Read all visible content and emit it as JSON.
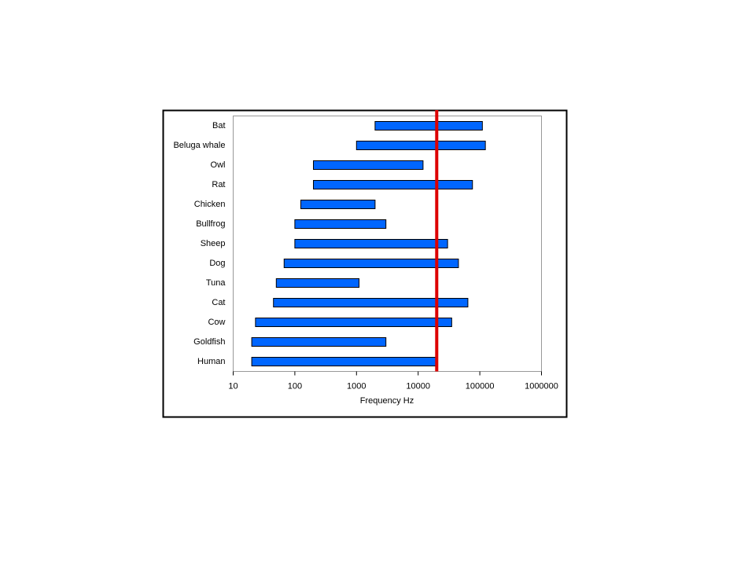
{
  "chart_data": {
    "type": "bar",
    "xlabel": "Frequency  Hz",
    "categories": [
      "Bat",
      "Beluga whale",
      "Owl",
      "Rat",
      "Chicken",
      "Bullfrog",
      "Sheep",
      "Dog",
      "Tuna",
      "Cat",
      "Cow",
      "Goldfish",
      "Human"
    ],
    "low": [
      2000,
      1000,
      200,
      200,
      125,
      100,
      100,
      67,
      50,
      45,
      23,
      20,
      20
    ],
    "high": [
      110000,
      123000,
      12000,
      76000,
      2000,
      3000,
      30000,
      45000,
      1100,
      64000,
      35000,
      3000,
      20000
    ],
    "color": "#0066ff",
    "xscale": "log",
    "xlim": [
      10,
      1000000
    ],
    "xticks": [
      10,
      100,
      1000,
      10000,
      100000,
      1000000
    ],
    "reference_line": {
      "value": 20000,
      "color": "#dd0000"
    }
  }
}
